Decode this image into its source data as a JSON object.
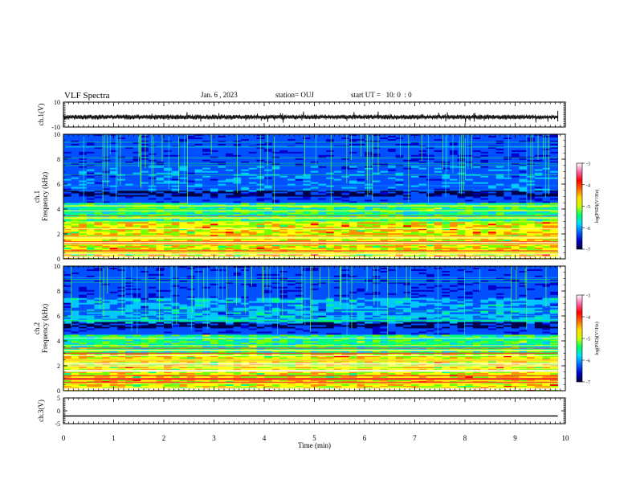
{
  "header": {
    "title": "VLF Spectra",
    "date": "Jan. 6 , 2023",
    "station": "station= OUJ",
    "start_ut": "start UT =   10: 0  : 0"
  },
  "colors": {
    "background": "#ffffff",
    "axis": "#000000",
    "colormap": [
      "#00004a",
      "#0000c8",
      "#0050ff",
      "#00c8ff",
      "#00ff80",
      "#78ff00",
      "#ffff00",
      "#ff9000",
      "#ff0000",
      "#ff6699",
      "#ffffff"
    ]
  },
  "chart_data": [
    {
      "id": "ch1-waveform",
      "type": "line",
      "ylabel": "ch.1(V)",
      "ylim": [
        -10,
        10
      ],
      "yticks": [
        "10",
        "-10"
      ],
      "xlim": [
        0,
        10
      ],
      "approx_level": -2,
      "approx_amplitude": 1.5,
      "data_extent": 9.85
    },
    {
      "id": "ch1-spectrogram",
      "type": "heatmap",
      "ylabel": "ch.1\nFrequency (kHz)",
      "ylim": [
        0,
        10
      ],
      "yticks": [
        "0",
        "2",
        "4",
        "6",
        "8",
        "10"
      ],
      "xlim": [
        0,
        10
      ],
      "data_extent": 9.85,
      "colorbar": {
        "label": "log(PSD)(V²/Hz)",
        "range": [
          -7,
          -3
        ],
        "ticks": [
          "-3",
          "-4",
          "-5",
          "-6",
          "-7"
        ]
      }
    },
    {
      "id": "ch2-spectrogram",
      "type": "heatmap",
      "ylabel": "ch.2\nFrequency (kHz)",
      "ylim": [
        0,
        10
      ],
      "yticks": [
        "0",
        "2",
        "4",
        "6",
        "8",
        "10"
      ],
      "xlim": [
        0,
        10
      ],
      "data_extent": 9.85,
      "colorbar": {
        "label": "log(PSD)(V²/Hz)",
        "range": [
          -7,
          -3
        ],
        "ticks": [
          "-3",
          "-4",
          "-5",
          "-6",
          "-7"
        ]
      }
    },
    {
      "id": "ch3-waveform",
      "type": "line",
      "ylabel": "ch.3(V)",
      "ylim": [
        -5,
        5
      ],
      "yticks": [
        "5",
        "0",
        "-5"
      ],
      "xlim": [
        0,
        10
      ],
      "approx_level": -2,
      "data_extent": 9.85,
      "xlabel": "Time (min)",
      "xticks": [
        "0",
        "1",
        "2",
        "3",
        "4",
        "5",
        "6",
        "7",
        "8",
        "9",
        "10"
      ]
    }
  ]
}
